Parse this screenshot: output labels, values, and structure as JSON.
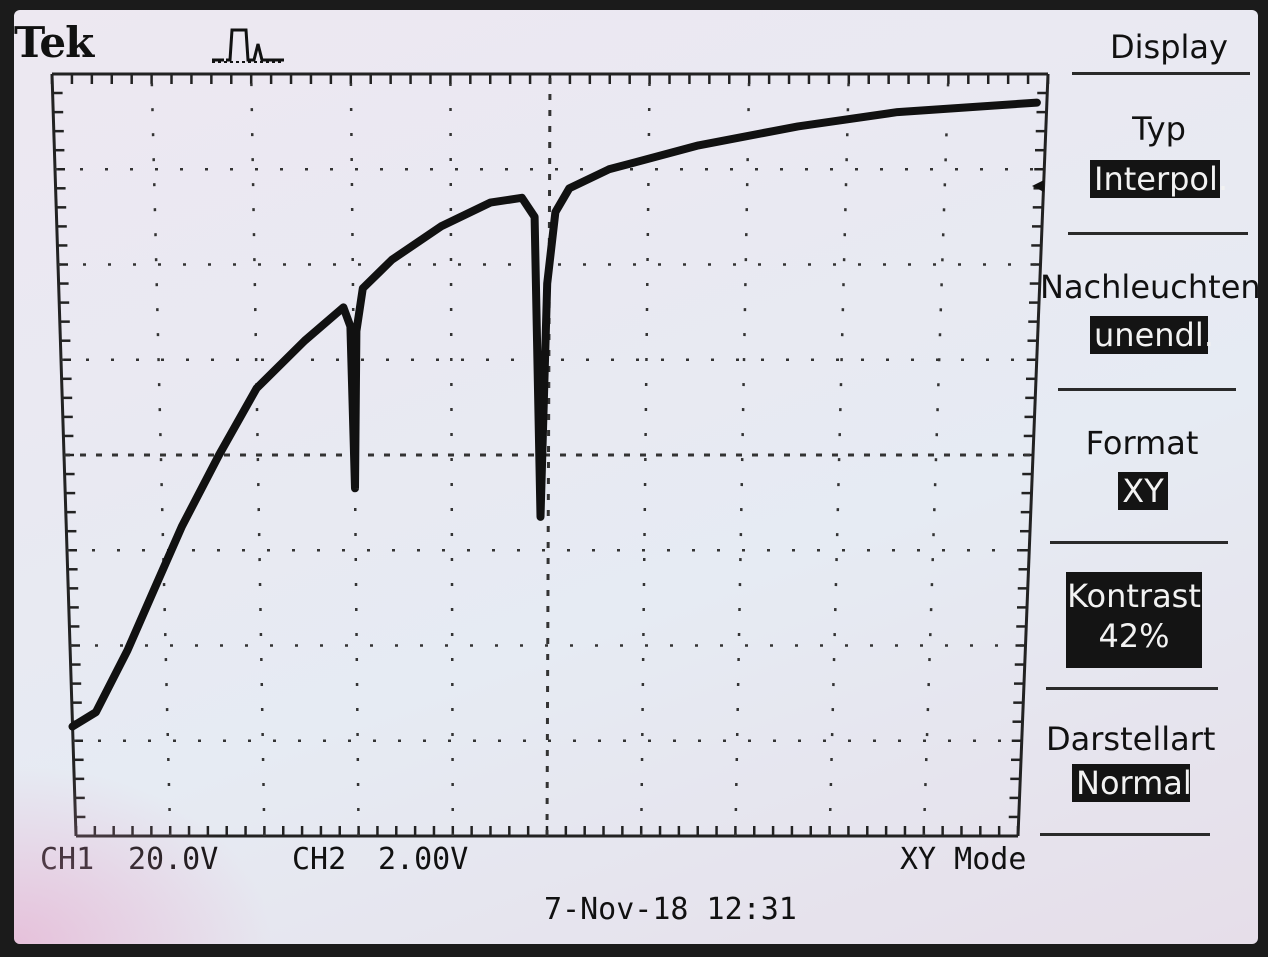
{
  "header": {
    "brand": "Tek",
    "trigger_icon": "pulse-trigger-icon"
  },
  "status": {
    "ch1_label": "CH1",
    "ch1_scale": "20.0V",
    "ch2_label": "CH2",
    "ch2_scale": "2.00V",
    "mode": "XY Mode",
    "datetime": "7-Nov-18 12:31"
  },
  "menu": {
    "title": "Display",
    "items": [
      {
        "label": "Typ",
        "value": "Interpol."
      },
      {
        "label": "Nachleuchten",
        "value": "unendl."
      },
      {
        "label": "Format",
        "value": "XY"
      },
      {
        "label": "Kontrast",
        "value": "42%"
      },
      {
        "label": "Darstellart",
        "value": "Normal"
      }
    ]
  },
  "chart_data": {
    "type": "line",
    "title": "",
    "xlabel": "",
    "ylabel": "",
    "grid": true,
    "x_divisions": 10,
    "y_divisions": 8,
    "xlim": [
      0,
      10
    ],
    "ylim": [
      0,
      8
    ],
    "series": [
      {
        "x": [
          0.0,
          0.25,
          0.6,
          0.9,
          1.2,
          1.6,
          2.0,
          2.5,
          2.9,
          2.97,
          3.0,
          3.03,
          3.1,
          3.4,
          3.9,
          4.4,
          4.72,
          4.85,
          4.92,
          4.98,
          5.06,
          5.2,
          5.6,
          6.5,
          7.5,
          8.5,
          9.9
        ],
        "y": [
          1.15,
          1.3,
          1.95,
          2.6,
          3.25,
          4.0,
          4.7,
          5.2,
          5.55,
          5.35,
          3.65,
          5.3,
          5.75,
          6.05,
          6.4,
          6.65,
          6.7,
          6.5,
          3.35,
          5.8,
          6.55,
          6.8,
          7.0,
          7.25,
          7.45,
          7.6,
          7.7
        ]
      }
    ]
  }
}
